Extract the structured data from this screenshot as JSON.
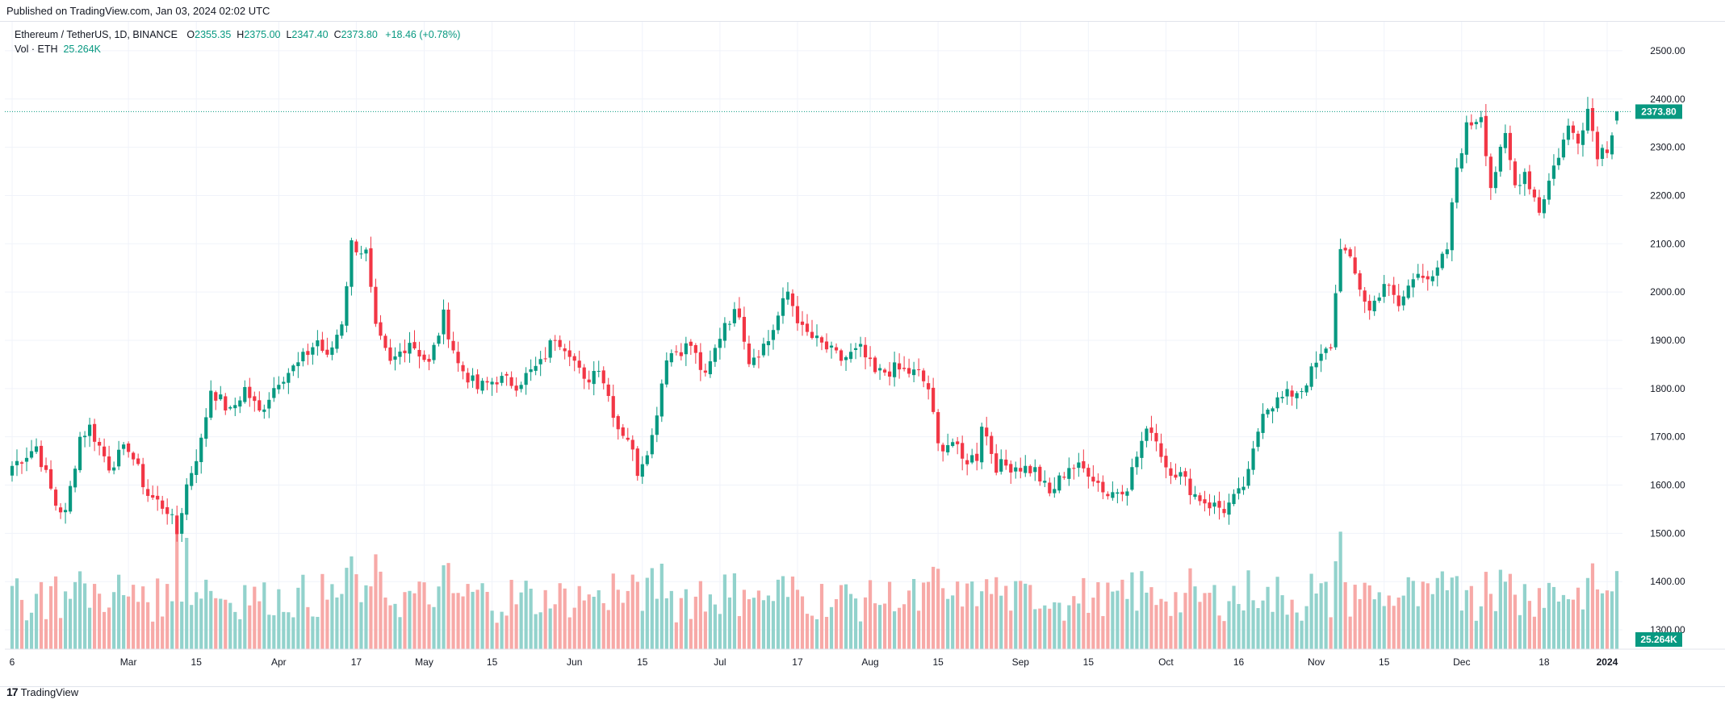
{
  "header": {
    "published": "Published on TradingView.com, Jan 03, 2024 02:02 UTC"
  },
  "legend": {
    "symbol": "Ethereum / TetherUS, 1D, BINANCE",
    "o_label": "O",
    "o_value": "2355.35",
    "h_label": "H",
    "h_value": "2375.00",
    "l_label": "L",
    "l_value": "2347.40",
    "c_label": "C",
    "c_value": "2373.80",
    "change": "+18.46 (+0.78%)",
    "vol_label": "Vol · ETH",
    "vol_value": "25.264K"
  },
  "footer": {
    "brand": "TradingView",
    "logo_glyph": "17"
  },
  "colors": {
    "up": "#089981",
    "down": "#f23645",
    "vol_up": "#92d2cc",
    "vol_down": "#f7a9a7",
    "grid": "#f0f3fa",
    "axis_text": "#131722"
  },
  "chart_data": {
    "type": "candlestick",
    "symbol": "Ethereum / TetherUS",
    "interval": "1D",
    "exchange": "BINANCE",
    "ylim": [
      1260,
      2560
    ],
    "y_ticks": [
      2500,
      2400,
      2300,
      2200,
      2100,
      2000,
      1900,
      1800,
      1700,
      1600,
      1500,
      1400,
      1300
    ],
    "y_tick_labels": [
      "2500.00",
      "2400.00",
      "2300.00",
      "2200.00",
      "2100.00",
      "2000.00",
      "1900.00",
      "1800.00",
      "1700.00",
      "1600.00",
      "1500.00",
      "1400.00",
      "1300.00"
    ],
    "x_ticks": [
      {
        "label": "6",
        "index": 0
      },
      {
        "label": "Mar",
        "index": 24
      },
      {
        "label": "15",
        "index": 38
      },
      {
        "label": "Apr",
        "index": 55
      },
      {
        "label": "17",
        "index": 71
      },
      {
        "label": "May",
        "index": 85
      },
      {
        "label": "15",
        "index": 99
      },
      {
        "label": "Jun",
        "index": 116
      },
      {
        "label": "15",
        "index": 130
      },
      {
        "label": "Jul",
        "index": 146
      },
      {
        "label": "17",
        "index": 162
      },
      {
        "label": "Aug",
        "index": 177
      },
      {
        "label": "15",
        "index": 191
      },
      {
        "label": "Sep",
        "index": 208
      },
      {
        "label": "15",
        "index": 222
      },
      {
        "label": "Oct",
        "index": 238
      },
      {
        "label": "16",
        "index": 253
      },
      {
        "label": "Nov",
        "index": 269
      },
      {
        "label": "15",
        "index": 283
      },
      {
        "label": "Dec",
        "index": 299
      },
      {
        "label": "18",
        "index": 316
      },
      {
        "label": "2024",
        "index": 329
      }
    ],
    "last_price": 2373.8,
    "last_price_label": "2373.80",
    "last_volume_label": "25.264K",
    "candle_count": 332,
    "anchors": [
      [
        0,
        1640
      ],
      [
        5,
        1680
      ],
      [
        9,
        1560
      ],
      [
        11,
        1540
      ],
      [
        14,
        1700
      ],
      [
        16,
        1720
      ],
      [
        20,
        1640
      ],
      [
        24,
        1680
      ],
      [
        28,
        1580
      ],
      [
        32,
        1550
      ],
      [
        34,
        1500
      ],
      [
        36,
        1600
      ],
      [
        39,
        1690
      ],
      [
        41,
        1800
      ],
      [
        45,
        1750
      ],
      [
        48,
        1800
      ],
      [
        51,
        1750
      ],
      [
        55,
        1820
      ],
      [
        59,
        1850
      ],
      [
        63,
        1900
      ],
      [
        65,
        1860
      ],
      [
        68,
        1940
      ],
      [
        70,
        2100
      ],
      [
        73,
        2080
      ],
      [
        75,
        1920
      ],
      [
        78,
        1850
      ],
      [
        82,
        1900
      ],
      [
        86,
        1850
      ],
      [
        89,
        1950
      ],
      [
        92,
        1850
      ],
      [
        96,
        1800
      ],
      [
        100,
        1820
      ],
      [
        104,
        1810
      ],
      [
        109,
        1850
      ],
      [
        112,
        1910
      ],
      [
        115,
        1880
      ],
      [
        118,
        1810
      ],
      [
        121,
        1850
      ],
      [
        125,
        1720
      ],
      [
        127,
        1700
      ],
      [
        129,
        1630
      ],
      [
        132,
        1700
      ],
      [
        135,
        1870
      ],
      [
        140,
        1890
      ],
      [
        143,
        1820
      ],
      [
        147,
        1940
      ],
      [
        150,
        1960
      ],
      [
        152,
        1860
      ],
      [
        156,
        1900
      ],
      [
        160,
        2000
      ],
      [
        163,
        1920
      ],
      [
        167,
        1890
      ],
      [
        171,
        1860
      ],
      [
        175,
        1880
      ],
      [
        178,
        1830
      ],
      [
        182,
        1840
      ],
      [
        187,
        1830
      ],
      [
        189,
        1800
      ],
      [
        191,
        1680
      ],
      [
        194,
        1690
      ],
      [
        196,
        1650
      ],
      [
        199,
        1660
      ],
      [
        200,
        1730
      ],
      [
        203,
        1640
      ],
      [
        207,
        1640
      ],
      [
        211,
        1630
      ],
      [
        214,
        1580
      ],
      [
        218,
        1640
      ],
      [
        222,
        1630
      ],
      [
        226,
        1580
      ],
      [
        230,
        1600
      ],
      [
        233,
        1690
      ],
      [
        235,
        1720
      ],
      [
        238,
        1640
      ],
      [
        241,
        1620
      ],
      [
        244,
        1580
      ],
      [
        247,
        1560
      ],
      [
        250,
        1550
      ],
      [
        253,
        1580
      ],
      [
        255,
        1620
      ],
      [
        258,
        1760
      ],
      [
        262,
        1780
      ],
      [
        266,
        1800
      ],
      [
        269,
        1850
      ],
      [
        272,
        1890
      ],
      [
        274,
        2100
      ],
      [
        276,
        2060
      ],
      [
        280,
        1960
      ],
      [
        283,
        2020
      ],
      [
        286,
        1970
      ],
      [
        290,
        2050
      ],
      [
        293,
        2020
      ],
      [
        296,
        2090
      ],
      [
        298,
        2260
      ],
      [
        300,
        2340
      ],
      [
        303,
        2370
      ],
      [
        305,
        2220
      ],
      [
        308,
        2320
      ],
      [
        310,
        2220
      ],
      [
        312,
        2250
      ],
      [
        315,
        2170
      ],
      [
        318,
        2260
      ],
      [
        321,
        2340
      ],
      [
        323,
        2320
      ],
      [
        325,
        2380
      ],
      [
        327,
        2290
      ],
      [
        329,
        2300
      ],
      [
        331,
        2374
      ]
    ],
    "volume_range_k": [
      0,
      60
    ],
    "volume_highlights": [
      {
        "index": 34,
        "volume_k": 42
      },
      {
        "index": 36,
        "volume_k": 36
      },
      {
        "index": 70,
        "volume_k": 30
      },
      {
        "index": 191,
        "volume_k": 26
      },
      {
        "index": 274,
        "volume_k": 38
      },
      {
        "index": 331,
        "volume_k": 25.264
      }
    ]
  }
}
